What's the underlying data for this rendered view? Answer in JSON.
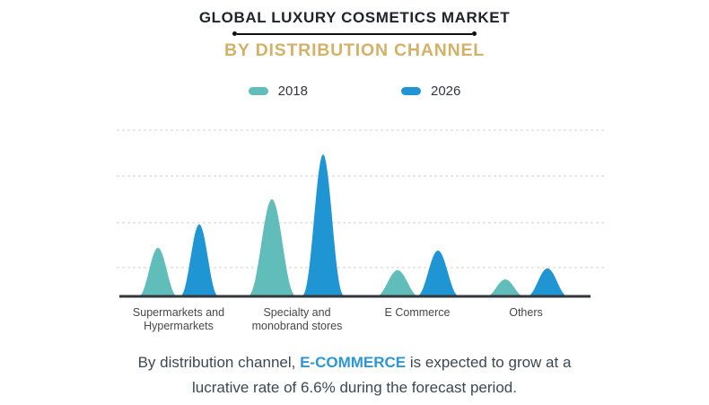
{
  "header": {
    "title": "GLOBAL LUXURY COSMETICS MARKET",
    "subtitle": "BY DISTRIBUTION CHANNEL"
  },
  "legend": {
    "items": [
      {
        "label": "2018",
        "color": "#60bdb9"
      },
      {
        "label": "2026",
        "color": "#2095d3"
      }
    ]
  },
  "chart_data": {
    "type": "area",
    "variant": "peak-spike-pairs",
    "title": "GLOBAL LUXURY COSMETICS MARKET",
    "subtitle": "BY DISTRIBUTION CHANNEL",
    "categories": [
      "Supermarkets and Hypermarkets",
      "Specialty and monobrand stores",
      "E Commerce",
      "Others"
    ],
    "category_label_lines": [
      [
        "Supermarkets and",
        "Hypermarkets"
      ],
      [
        "Specialty and",
        "monobrand stores"
      ],
      [
        "E Commerce"
      ],
      [
        "Others"
      ]
    ],
    "series": [
      {
        "name": "2018",
        "color": "#60bdb9",
        "values": [
          1.06,
          2.12,
          0.57,
          0.37
        ]
      },
      {
        "name": "2026",
        "color": "#2095d3",
        "values": [
          1.57,
          3.1,
          1.0,
          0.61
        ]
      }
    ],
    "value_unit_note": "no y-axis tick labels shown; 1.0 = one horizontal gridline interval",
    "xlabel": "",
    "ylabel": "",
    "y_axis_labels_visible": false,
    "gridlines": {
      "count": 4,
      "style": "dashed",
      "orientation": "horizontal"
    },
    "legend_position": "top-center"
  },
  "caption": {
    "pre": "By distribution channel, ",
    "highlight": "E-COMMERCE",
    "post": " is expected to grow at a",
    "line2": "lucrative rate of 6.6% during the forecast period.",
    "highlight_color": "#2d96d4"
  },
  "colors": {
    "accent_gold": "#d2b269",
    "title_text": "#20242b",
    "series_2018": "#60bdb9",
    "series_2026": "#2095d3",
    "gridline": "#d2d2d2",
    "axis": "#33373c",
    "caption_text": "#3d4752"
  }
}
